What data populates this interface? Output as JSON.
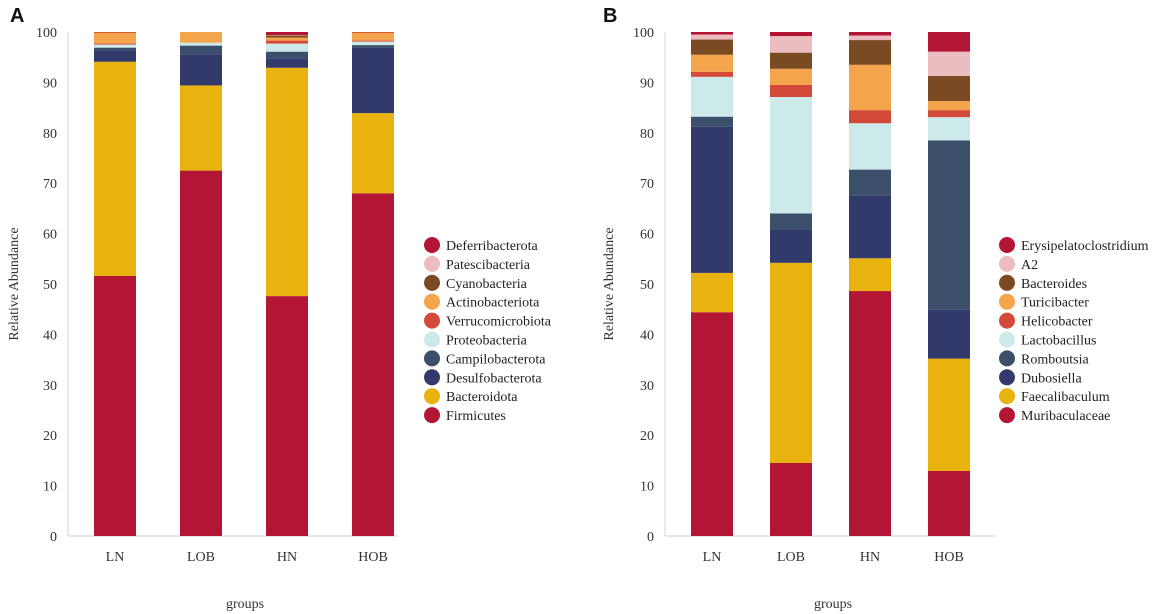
{
  "chart_data": [
    {
      "type": "bar",
      "stacked": true,
      "panel_label": "A",
      "xlabel": "groups",
      "ylabel": "Relative Abundance",
      "ylim": [
        0,
        100
      ],
      "yticks": [
        0,
        10,
        20,
        30,
        40,
        50,
        60,
        70,
        80,
        90,
        100
      ],
      "categories": [
        "LN",
        "LOB",
        "HN",
        "HOB"
      ],
      "series": [
        {
          "name": "Firmicutes",
          "color": "#b31534",
          "values": [
            51.6,
            72.5,
            47.6,
            68.0
          ]
        },
        {
          "name": "Bacteroidota",
          "color": "#e8b20f",
          "values": [
            42.5,
            16.9,
            45.3,
            15.9
          ]
        },
        {
          "name": "Desulfobacterota",
          "color": "#323a6b",
          "values": [
            2.3,
            6.2,
            1.9,
            13.0
          ]
        },
        {
          "name": "Campilobacterota",
          "color": "#3b4f6b",
          "values": [
            0.5,
            1.7,
            1.3,
            0.5
          ]
        },
        {
          "name": "Proteobacteria",
          "color": "#cdeaea",
          "values": [
            0.6,
            0.6,
            1.6,
            0.7
          ]
        },
        {
          "name": "Verrucomicrobiota",
          "color": "#d44a3a",
          "values": [
            0.2,
            0.0,
            0.6,
            0.2
          ]
        },
        {
          "name": "Actinobacteriota",
          "color": "#f4a44a",
          "values": [
            2.2,
            2.1,
            0.6,
            1.6
          ]
        },
        {
          "name": "Cyanobacteria",
          "color": "#7a4a22",
          "values": [
            0.0,
            0.0,
            0.4,
            0.0
          ]
        },
        {
          "name": "Patescibacteria",
          "color": "#ebbcc0",
          "values": [
            0.0,
            0.0,
            0.1,
            0.0
          ]
        },
        {
          "name": "Deferribacterota",
          "color": "#b31534",
          "values": [
            0.1,
            0.0,
            0.6,
            0.1
          ]
        }
      ],
      "legend": [
        "Deferribacterota",
        "Patescibacteria",
        "Cyanobacteria",
        "Actinobacteriota",
        "Verrucomicrobiota",
        "Proteobacteria",
        "Campilobacterota",
        "Desulfobacterota",
        "Bacteroidota",
        "Firmicutes"
      ]
    },
    {
      "type": "bar",
      "stacked": true,
      "panel_label": "B",
      "xlabel": "groups",
      "ylabel": "Relative Abundance",
      "ylim": [
        0,
        100
      ],
      "yticks": [
        0,
        10,
        20,
        30,
        40,
        50,
        60,
        70,
        80,
        90,
        100
      ],
      "categories": [
        "LN",
        "LOB",
        "HN",
        "HOB"
      ],
      "series": [
        {
          "name": "Muribaculaceae",
          "color": "#b31534",
          "values": [
            44.4,
            14.5,
            48.6,
            12.9
          ]
        },
        {
          "name": "Faecalibaculum",
          "color": "#e8b20f",
          "values": [
            7.8,
            39.7,
            6.5,
            22.3
          ]
        },
        {
          "name": "Dubosiella",
          "color": "#323a6b",
          "values": [
            29.1,
            6.6,
            12.5,
            9.8
          ]
        },
        {
          "name": "Romboutsia",
          "color": "#3b4f6b",
          "values": [
            1.9,
            3.2,
            5.1,
            33.5
          ]
        },
        {
          "name": "Lactobacillus",
          "color": "#cdeaea",
          "values": [
            7.9,
            23.1,
            9.2,
            4.6
          ]
        },
        {
          "name": "Helicobacter",
          "color": "#d44a3a",
          "values": [
            1.0,
            2.4,
            2.6,
            1.4
          ]
        },
        {
          "name": "Turicibacter",
          "color": "#f4a44a",
          "values": [
            3.4,
            3.2,
            9.0,
            1.8
          ]
        },
        {
          "name": "Bacteroides",
          "color": "#7a4a22",
          "values": [
            3.0,
            3.2,
            4.9,
            5.0
          ]
        },
        {
          "name": "A2",
          "color": "#ebbcc0",
          "values": [
            1.0,
            3.3,
            0.9,
            4.8
          ]
        },
        {
          "name": "Erysipelatoclostridium",
          "color": "#b31534",
          "values": [
            0.5,
            0.8,
            0.7,
            3.9
          ]
        }
      ],
      "legend": [
        "Erysipelatoclostridium",
        "A2",
        "Bacteroides",
        "Turicibacter",
        "Helicobacter",
        "Lactobacillus",
        "Romboutsia",
        "Dubosiella",
        "Faecalibaculum",
        "Muribaculaceae"
      ]
    }
  ]
}
